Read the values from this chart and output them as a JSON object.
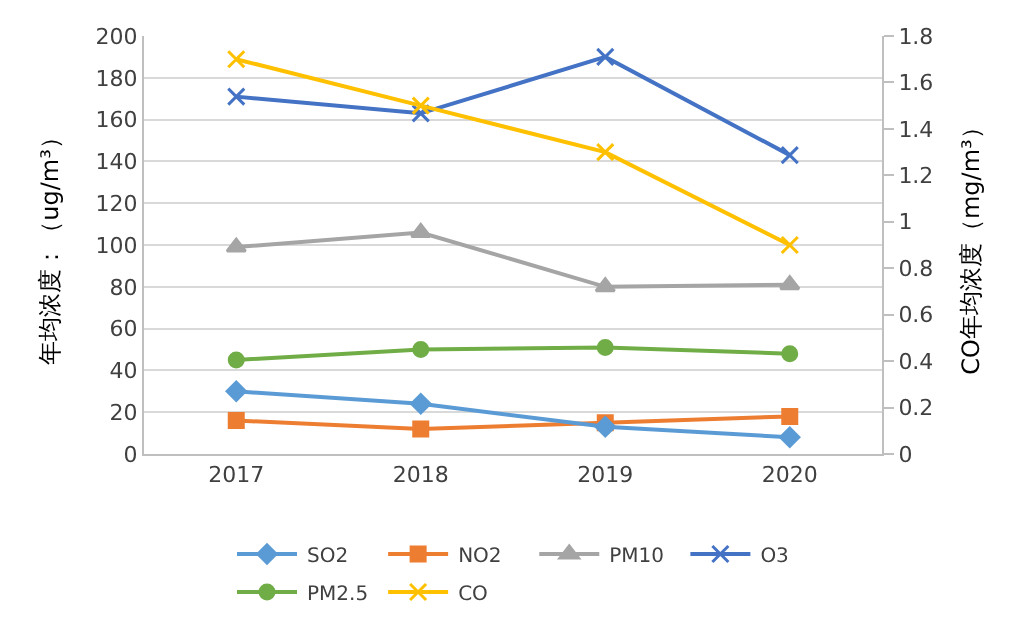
{
  "chart_data": {
    "type": "line",
    "categories": [
      "2017",
      "2018",
      "2019",
      "2020"
    ],
    "ylabel": "年均浓度：（ug/m³）",
    "y2label": "CO年均浓度（mg/m³）",
    "ylim": [
      0,
      200
    ],
    "yticks": [
      0,
      20,
      40,
      60,
      80,
      100,
      120,
      140,
      160,
      180,
      200
    ],
    "y2lim": [
      0,
      1.8
    ],
    "y2ticks": [
      0,
      0.2,
      0.4,
      0.6,
      0.8,
      1,
      1.2,
      1.4,
      1.6,
      1.8
    ],
    "grid": "y",
    "legend": "bottom",
    "line_style": "solid",
    "series": [
      {
        "name": "SO2",
        "color": "#5b9bd5",
        "marker": "diamond",
        "values": [
          30,
          24,
          13,
          8
        ]
      },
      {
        "name": "NO2",
        "color": "#ed7d31",
        "marker": "square",
        "values": [
          16,
          12,
          15,
          18
        ]
      },
      {
        "name": "PM10",
        "color": "#a5a5a5",
        "marker": "triangle",
        "values": [
          99,
          106,
          80,
          81
        ]
      },
      {
        "name": "O3",
        "color": "#4472c4",
        "marker": "cross",
        "values": [
          171,
          163,
          190,
          143
        ]
      },
      {
        "name": "PM2.5",
        "color": "#70ad47",
        "marker": "circle",
        "values": [
          45,
          50,
          51,
          48
        ]
      },
      {
        "name": "CO",
        "color": "#ffc000",
        "marker": "cross",
        "axis": "y2",
        "values": [
          1.7,
          1.5,
          1.3,
          0.9
        ]
      }
    ]
  }
}
